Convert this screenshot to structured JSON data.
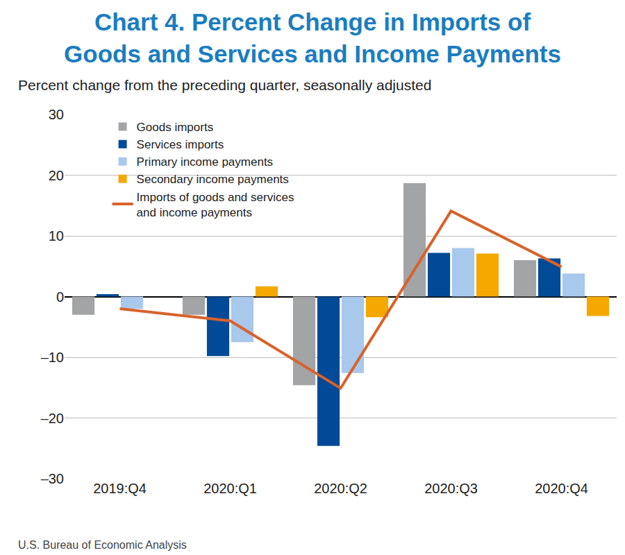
{
  "chart_data": {
    "type": "bar",
    "title": "Chart 4. Percent Change in Imports of\nGoods and Services and Income Payments",
    "subtitle": "Percent change from the preceding quarter, seasonally adjusted",
    "source": "U.S. Bureau of Economic Analysis",
    "categories": [
      "2019:Q4",
      "2020:Q1",
      "2020:Q2",
      "2020:Q3",
      "2020:Q4"
    ],
    "series": [
      {
        "name": "Goods imports",
        "color": "#a2a4a5",
        "values": [
          -3.0,
          -3.0,
          -14.6,
          18.7,
          6.0
        ]
      },
      {
        "name": "Services imports",
        "color": "#014a97",
        "values": [
          0.4,
          -9.8,
          -24.6,
          7.2,
          6.3
        ]
      },
      {
        "name": "Primary income payments",
        "color": "#a8c8ec",
        "values": [
          -2.0,
          -7.5,
          -12.6,
          8.0,
          3.8
        ]
      },
      {
        "name": "Secondary income payments",
        "color": "#f5a800",
        "values": [
          0.0,
          1.7,
          -3.4,
          7.1,
          -3.2
        ]
      },
      {
        "name": "Imports of goods and services\nand income payments",
        "type": "line",
        "color": "#d9622b",
        "values": [
          -2.0,
          -4.0,
          -15.1,
          14.1,
          4.9
        ]
      }
    ],
    "ylim": [
      -30,
      30
    ],
    "yticks": [
      {
        "value": -30,
        "label": "–30"
      },
      {
        "value": -20,
        "label": "–20"
      },
      {
        "value": -10,
        "label": "–10"
      },
      0,
      10,
      20,
      30
    ],
    "grid": true,
    "legend": "top left"
  }
}
